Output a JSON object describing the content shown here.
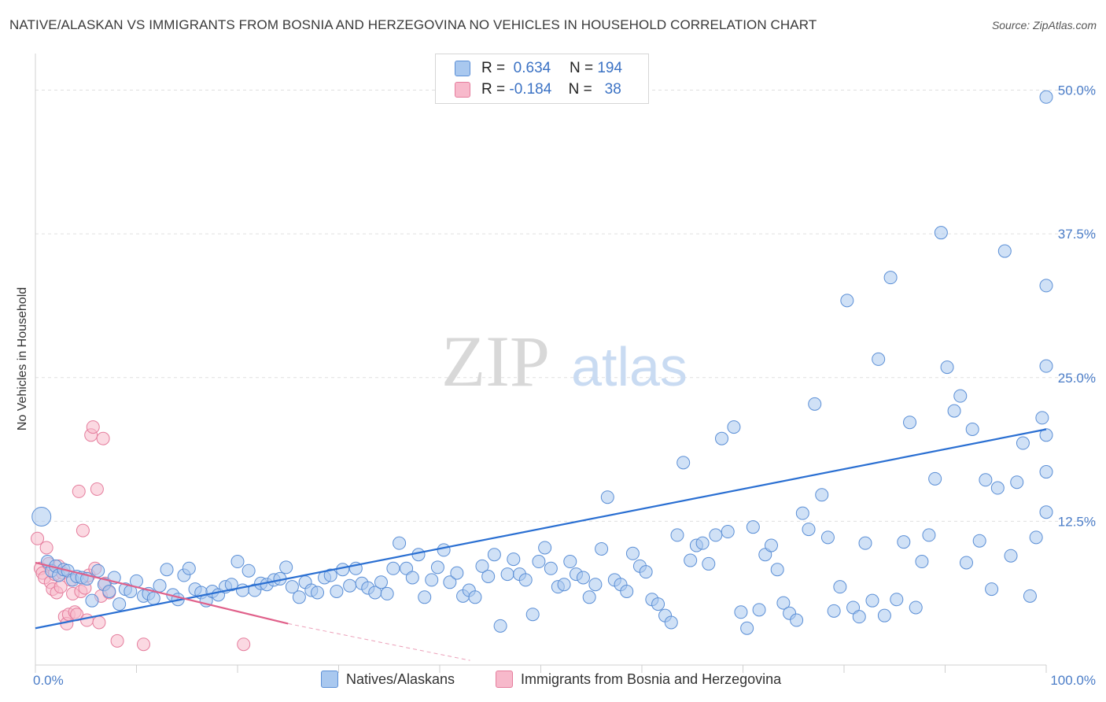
{
  "title": "NATIVE/ALASKAN VS IMMIGRANTS FROM BOSNIA AND HERZEGOVINA NO VEHICLES IN HOUSEHOLD CORRELATION CHART",
  "source": "Source: ZipAtlas.com",
  "watermark": {
    "zip": "ZIP",
    "atlas": "atlas"
  },
  "legend": {
    "r_label": "R =",
    "n_label": "N =",
    "rows": [
      {
        "r": "0.634",
        "n": "194"
      },
      {
        "r": "-0.184",
        "n": "38"
      }
    ]
  },
  "colors": {
    "blue_fill": "#a9c8ef",
    "blue_stroke": "#5b8fd6",
    "blue_line": "#2a6fd2",
    "pink_fill": "#f7b9cb",
    "pink_stroke": "#e57d9d",
    "pink_line": "#e0608a",
    "grid": "#e0e0e0",
    "tick": "#4a7cc7"
  },
  "chart_data": {
    "type": "scatter",
    "title": "NATIVE/ALASKAN VS IMMIGRANTS FROM BOSNIA AND HERZEGOVINA NO VEHICLES IN HOUSEHOLD CORRELATION CHART",
    "xlabel": "",
    "ylabel": "No Vehicles in Household",
    "xlim": [
      0,
      100
    ],
    "ylim": [
      0,
      52.5
    ],
    "x_tick_labels": [
      "0.0%",
      "100.0%"
    ],
    "y_ticks": [
      12.5,
      25.0,
      37.5,
      50.0
    ],
    "y_tick_labels": [
      "12.5%",
      "25.0%",
      "37.5%",
      "50.0%"
    ],
    "series": [
      {
        "name": "Natives/Alaskans",
        "r": 0.634,
        "n": 194,
        "trend": {
          "x": [
            0,
            100
          ],
          "y": [
            3.2,
            20.5
          ]
        },
        "points": [
          [
            0.6,
            12.9
          ],
          [
            1.2,
            9.0
          ],
          [
            1.6,
            8.2
          ],
          [
            2.0,
            8.6
          ],
          [
            2.3,
            7.8
          ],
          [
            2.8,
            8.3
          ],
          [
            3.2,
            8.2
          ],
          [
            3.7,
            7.4
          ],
          [
            4.1,
            7.7
          ],
          [
            4.6,
            7.6
          ],
          [
            5.1,
            7.5
          ],
          [
            5.6,
            5.6
          ],
          [
            6.2,
            8.2
          ],
          [
            6.8,
            7.0
          ],
          [
            7.3,
            6.4
          ],
          [
            7.8,
            7.6
          ],
          [
            8.3,
            5.3
          ],
          [
            8.9,
            6.6
          ],
          [
            9.4,
            6.4
          ],
          [
            10.0,
            7.3
          ],
          [
            10.7,
            6.0
          ],
          [
            11.2,
            6.2
          ],
          [
            11.7,
            5.8
          ],
          [
            12.3,
            6.9
          ],
          [
            13.0,
            8.3
          ],
          [
            13.6,
            6.1
          ],
          [
            14.1,
            5.7
          ],
          [
            14.7,
            7.8
          ],
          [
            15.2,
            8.4
          ],
          [
            15.8,
            6.6
          ],
          [
            16.4,
            6.3
          ],
          [
            16.9,
            5.6
          ],
          [
            17.5,
            6.4
          ],
          [
            18.1,
            6.1
          ],
          [
            18.8,
            6.8
          ],
          [
            19.4,
            7.0
          ],
          [
            20.0,
            9.0
          ],
          [
            20.5,
            6.5
          ],
          [
            21.1,
            8.2
          ],
          [
            21.7,
            6.5
          ],
          [
            22.3,
            7.1
          ],
          [
            22.9,
            7.0
          ],
          [
            23.6,
            7.4
          ],
          [
            24.2,
            7.5
          ],
          [
            24.8,
            8.5
          ],
          [
            25.4,
            6.8
          ],
          [
            26.1,
            5.9
          ],
          [
            26.7,
            7.2
          ],
          [
            27.3,
            6.5
          ],
          [
            27.9,
            6.3
          ],
          [
            28.6,
            7.6
          ],
          [
            29.2,
            7.8
          ],
          [
            29.8,
            6.4
          ],
          [
            30.4,
            8.3
          ],
          [
            31.1,
            6.9
          ],
          [
            31.7,
            8.4
          ],
          [
            32.3,
            7.1
          ],
          [
            32.9,
            6.7
          ],
          [
            33.6,
            6.3
          ],
          [
            34.2,
            7.2
          ],
          [
            34.8,
            6.2
          ],
          [
            35.4,
            8.4
          ],
          [
            36.0,
            10.6
          ],
          [
            36.7,
            8.4
          ],
          [
            37.3,
            7.6
          ],
          [
            37.9,
            9.6
          ],
          [
            38.5,
            5.9
          ],
          [
            39.2,
            7.4
          ],
          [
            39.8,
            8.5
          ],
          [
            40.4,
            10.0
          ],
          [
            41.0,
            7.2
          ],
          [
            41.7,
            8.0
          ],
          [
            42.3,
            6.0
          ],
          [
            42.9,
            6.5
          ],
          [
            43.5,
            5.9
          ],
          [
            44.2,
            8.6
          ],
          [
            44.8,
            7.7
          ],
          [
            45.4,
            9.6
          ],
          [
            46.0,
            3.4
          ],
          [
            46.7,
            7.9
          ],
          [
            47.3,
            9.2
          ],
          [
            47.9,
            7.9
          ],
          [
            48.5,
            7.4
          ],
          [
            49.2,
            4.4
          ],
          [
            49.8,
            9.0
          ],
          [
            50.4,
            10.2
          ],
          [
            51.0,
            8.4
          ],
          [
            51.7,
            6.8
          ],
          [
            52.3,
            7.0
          ],
          [
            52.9,
            9.0
          ],
          [
            53.5,
            7.9
          ],
          [
            54.2,
            7.6
          ],
          [
            54.8,
            5.9
          ],
          [
            55.4,
            7.0
          ],
          [
            56.0,
            10.1
          ],
          [
            56.6,
            14.6
          ],
          [
            57.3,
            7.4
          ],
          [
            57.9,
            7.0
          ],
          [
            58.5,
            6.4
          ],
          [
            59.1,
            9.7
          ],
          [
            59.8,
            8.6
          ],
          [
            60.4,
            8.1
          ],
          [
            61.0,
            5.7
          ],
          [
            61.6,
            5.3
          ],
          [
            62.3,
            4.3
          ],
          [
            62.9,
            3.7
          ],
          [
            63.5,
            11.3
          ],
          [
            64.1,
            17.6
          ],
          [
            64.8,
            9.1
          ],
          [
            65.4,
            10.4
          ],
          [
            66.0,
            10.6
          ],
          [
            66.6,
            8.8
          ],
          [
            67.3,
            11.3
          ],
          [
            67.9,
            19.7
          ],
          [
            68.5,
            11.6
          ],
          [
            69.1,
            20.7
          ],
          [
            69.8,
            4.6
          ],
          [
            70.4,
            3.2
          ],
          [
            71.0,
            12.0
          ],
          [
            71.6,
            4.8
          ],
          [
            72.2,
            9.6
          ],
          [
            72.8,
            10.4
          ],
          [
            73.4,
            8.3
          ],
          [
            74.0,
            5.4
          ],
          [
            74.6,
            4.5
          ],
          [
            75.3,
            3.9
          ],
          [
            75.9,
            13.2
          ],
          [
            76.5,
            11.8
          ],
          [
            77.1,
            22.7
          ],
          [
            77.8,
            14.8
          ],
          [
            78.4,
            11.1
          ],
          [
            79.0,
            4.7
          ],
          [
            79.6,
            6.8
          ],
          [
            80.3,
            31.7
          ],
          [
            80.9,
            5.0
          ],
          [
            81.5,
            4.2
          ],
          [
            82.1,
            10.6
          ],
          [
            82.8,
            5.6
          ],
          [
            83.4,
            26.6
          ],
          [
            84.0,
            4.3
          ],
          [
            84.6,
            33.7
          ],
          [
            85.2,
            5.7
          ],
          [
            85.9,
            10.7
          ],
          [
            86.5,
            21.1
          ],
          [
            87.1,
            5.0
          ],
          [
            87.7,
            9.0
          ],
          [
            88.4,
            11.3
          ],
          [
            89.0,
            16.2
          ],
          [
            89.6,
            37.6
          ],
          [
            90.2,
            25.9
          ],
          [
            90.9,
            22.1
          ],
          [
            91.5,
            23.4
          ],
          [
            92.1,
            8.9
          ],
          [
            92.7,
            20.5
          ],
          [
            93.4,
            10.8
          ],
          [
            94.0,
            16.1
          ],
          [
            94.6,
            6.6
          ],
          [
            95.2,
            15.4
          ],
          [
            95.9,
            36.0
          ],
          [
            96.5,
            9.5
          ],
          [
            97.1,
            15.9
          ],
          [
            97.7,
            19.3
          ],
          [
            98.4,
            6.0
          ],
          [
            99.0,
            11.1
          ],
          [
            99.6,
            21.5
          ],
          [
            100.0,
            13.3
          ],
          [
            100.0,
            16.8
          ],
          [
            100.0,
            20.0
          ],
          [
            100.0,
            26.0
          ],
          [
            100.0,
            33.0
          ],
          [
            100.0,
            49.4
          ]
        ]
      },
      {
        "name": "Immigrants from Bosnia and Herzegovina",
        "r": -0.184,
        "n": 38,
        "trend": {
          "x": [
            0,
            25
          ],
          "y": [
            8.9,
            3.6
          ],
          "dashed_to": [
            43,
            0.4
          ]
        },
        "points": [
          [
            0.2,
            11.0
          ],
          [
            0.5,
            8.4
          ],
          [
            0.7,
            8.0
          ],
          [
            0.9,
            7.6
          ],
          [
            1.1,
            10.2
          ],
          [
            1.3,
            8.8
          ],
          [
            1.5,
            7.2
          ],
          [
            1.7,
            6.6
          ],
          [
            1.9,
            7.9
          ],
          [
            2.1,
            6.3
          ],
          [
            2.3,
            8.6
          ],
          [
            2.5,
            6.8
          ],
          [
            2.7,
            8.0
          ],
          [
            2.9,
            4.2
          ],
          [
            3.1,
            3.6
          ],
          [
            3.3,
            4.4
          ],
          [
            3.5,
            7.4
          ],
          [
            3.7,
            6.2
          ],
          [
            3.9,
            4.6
          ],
          [
            4.1,
            4.4
          ],
          [
            4.3,
            15.1
          ],
          [
            4.5,
            6.4
          ],
          [
            4.7,
            11.7
          ],
          [
            4.9,
            6.7
          ],
          [
            5.1,
            3.9
          ],
          [
            5.3,
            7.8
          ],
          [
            5.5,
            20.0
          ],
          [
            5.7,
            20.7
          ],
          [
            5.9,
            8.4
          ],
          [
            6.1,
            15.3
          ],
          [
            6.3,
            3.7
          ],
          [
            6.5,
            6.0
          ],
          [
            6.7,
            19.7
          ],
          [
            6.9,
            7.1
          ],
          [
            7.3,
            6.3
          ],
          [
            8.1,
            2.1
          ],
          [
            10.7,
            1.8
          ],
          [
            20.6,
            1.8
          ]
        ]
      }
    ]
  },
  "bottom_legend": [
    "Natives/Alaskans",
    "Immigrants from Bosnia and Herzegovina"
  ]
}
